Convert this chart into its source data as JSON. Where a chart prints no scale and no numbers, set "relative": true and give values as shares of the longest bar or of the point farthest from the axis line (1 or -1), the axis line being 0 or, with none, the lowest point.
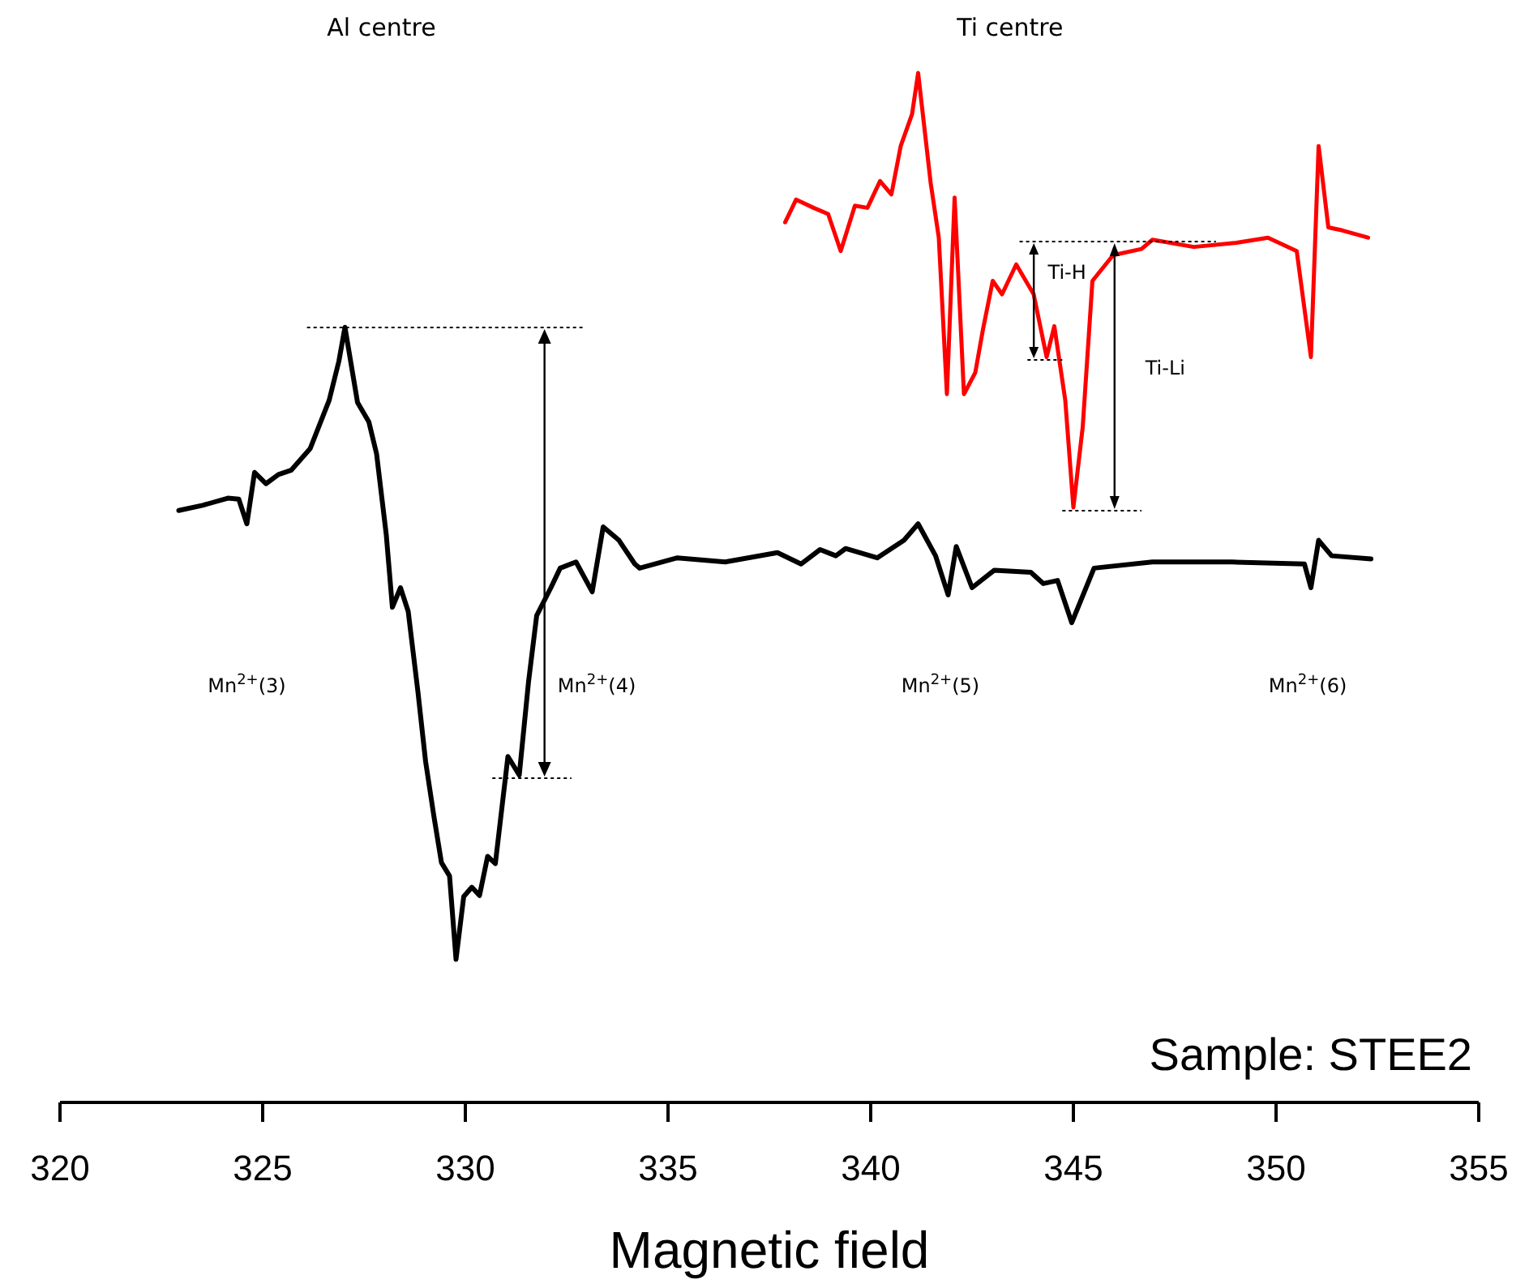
{
  "chart_data": {
    "type": "line",
    "relative": true,
    "xlabel": "Magnetic field",
    "xlim": [
      320,
      355
    ],
    "xticks": [
      320,
      325,
      330,
      335,
      340,
      345,
      350,
      355
    ],
    "marker": "none",
    "line_style": "solid",
    "grid": false,
    "series": [
      {
        "color": "#000000",
        "x": [
          322.93,
          323.52,
          324.14,
          324.41,
          324.61,
          324.8,
          325.08,
          325.39,
          325.7,
          326.17,
          326.64,
          326.88,
          327.03,
          327.34,
          327.62,
          327.81,
          328.05,
          328.2,
          328.4,
          328.59,
          328.83,
          329.02,
          329.22,
          329.41,
          329.61,
          329.77,
          329.96,
          330.16,
          330.35,
          330.55,
          330.74,
          331.05,
          331.33,
          331.56,
          331.76,
          332.11,
          332.34,
          332.73,
          333.13,
          333.4,
          333.79,
          334.18,
          334.3,
          335.23,
          336.41,
          337.7,
          338.28,
          338.75,
          339.14,
          339.38,
          340.16,
          340.82,
          341.17,
          341.6,
          341.91,
          342.11,
          342.5,
          343.05,
          343.95,
          344.26,
          344.61,
          344.96,
          345.51,
          346.95,
          348.91,
          350.7,
          350.86,
          351.05,
          351.37,
          352.34
        ],
        "values": [
          0.575,
          0.58,
          0.587,
          0.586,
          0.562,
          0.612,
          0.601,
          0.61,
          0.614,
          0.635,
          0.682,
          0.72,
          0.753,
          0.68,
          0.661,
          0.63,
          0.551,
          0.481,
          0.5,
          0.477,
          0.399,
          0.331,
          0.279,
          0.233,
          0.22,
          0.139,
          0.2,
          0.209,
          0.201,
          0.239,
          0.232,
          0.336,
          0.318,
          0.409,
          0.473,
          0.5,
          0.519,
          0.525,
          0.496,
          0.559,
          0.546,
          0.523,
          0.519,
          0.529,
          0.525,
          0.534,
          0.523,
          0.537,
          0.531,
          0.538,
          0.529,
          0.546,
          0.562,
          0.531,
          0.493,
          0.54,
          0.5,
          0.517,
          0.515,
          0.504,
          0.507,
          0.466,
          0.519,
          0.525,
          0.525,
          0.523,
          0.5,
          0.546,
          0.531,
          0.528
        ]
      },
      {
        "color": "#ff0000",
        "x": [
          337.89,
          338.16,
          338.59,
          338.95,
          339.26,
          339.61,
          339.92,
          340.23,
          340.51,
          340.74,
          341.02,
          341.17,
          341.48,
          341.68,
          341.88,
          342.07,
          342.3,
          342.58,
          342.77,
          343.01,
          343.24,
          343.59,
          344.02,
          344.34,
          344.53,
          344.8,
          345,
          345.23,
          345.47,
          345.98,
          346.68,
          346.95,
          347.97,
          349.02,
          349.8,
          350.51,
          350.86,
          351.05,
          351.29,
          351.64,
          352.27
        ],
        "values": [
          0.855,
          0.877,
          0.869,
          0.863,
          0.827,
          0.871,
          0.869,
          0.895,
          0.882,
          0.929,
          0.96,
          1,
          0.893,
          0.84,
          0.688,
          0.879,
          0.688,
          0.709,
          0.751,
          0.798,
          0.785,
          0.814,
          0.785,
          0.724,
          0.754,
          0.682,
          0.578,
          0.656,
          0.798,
          0.823,
          0.829,
          0.838,
          0.831,
          0.835,
          0.84,
          0.827,
          0.724,
          0.929,
          0.85,
          0.847,
          0.84
        ]
      }
    ],
    "annotations": [
      "Al centre",
      "Ti centre",
      "Sample: STEE2",
      "Mn$^{2+}$(3)",
      "Mn$^{2+}$(4)",
      "Mn$^{2+}$(5)",
      "Mn$^{2+}$(6)",
      "Ti-H",
      "Ti-Li"
    ]
  }
}
